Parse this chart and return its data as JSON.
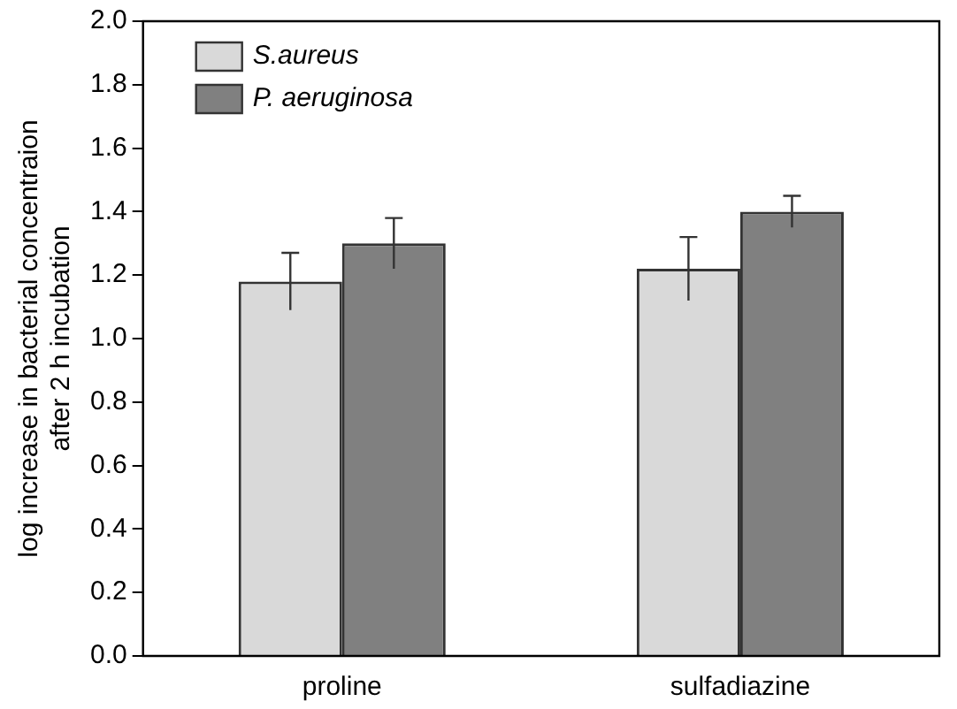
{
  "chart_data": {
    "type": "bar",
    "ylabel": "log increase in bacterial concentraion\nafter 2 h incubation",
    "categories": [
      "proline",
      "sulfadiazine"
    ],
    "series": [
      {
        "name": "S.aureus",
        "color": "#d9d9d9",
        "values": [
          1.18,
          1.22
        ],
        "errors": [
          0.09,
          0.1
        ]
      },
      {
        "name": "P. aeruginosa",
        "color": "#808080",
        "values": [
          1.3,
          1.4
        ],
        "errors": [
          0.08,
          0.05
        ]
      }
    ],
    "ylim": [
      0,
      2
    ],
    "yticks": [
      {
        "value": 0,
        "label": "0.0"
      },
      0.2,
      0.4,
      0.6,
      0.8,
      {
        "value": 1,
        "label": "1.0"
      },
      1.2,
      1.4,
      1.6,
      1.8,
      {
        "value": 2,
        "label": "2.0"
      }
    ],
    "grid": false,
    "legend": "top left"
  }
}
